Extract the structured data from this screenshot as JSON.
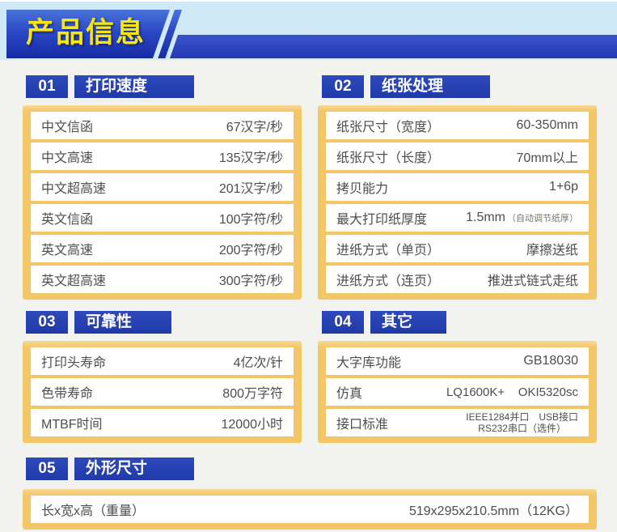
{
  "banner": {
    "title": "产品信息"
  },
  "sections": [
    {
      "number": "01",
      "title": "打印速度",
      "rows": [
        {
          "label": "中文信函",
          "value": "67汉字/秒"
        },
        {
          "label": "中文高速",
          "value": "135汉字/秒"
        },
        {
          "label": "中文超高速",
          "value": "201汉字/秒"
        },
        {
          "label": "英文信函",
          "value": "100字符/秒"
        },
        {
          "label": "英文高速",
          "value": "200字符/秒"
        },
        {
          "label": "英文超高速",
          "value": "300字符/秒"
        }
      ]
    },
    {
      "number": "02",
      "title": "纸张处理",
      "rows": [
        {
          "label": "纸张尺寸（宽度）",
          "value": "60-350mm"
        },
        {
          "label": "纸张尺寸（长度）",
          "value": "70mm以上"
        },
        {
          "label": "拷贝能力",
          "value": "1+6p"
        },
        {
          "label": "最大打印纸厚度",
          "value": "1.5mm",
          "note": "（自动调节纸厚）"
        },
        {
          "label": "进纸方式（单页）",
          "value": "摩擦送纸"
        },
        {
          "label": "进纸方式（连页）",
          "value": "推进式链式走纸"
        }
      ]
    },
    {
      "number": "03",
      "title": "可靠性",
      "rows": [
        {
          "label": "打印头寿命",
          "value": "4亿次/针"
        },
        {
          "label": "色带寿命",
          "value": "800万字符"
        },
        {
          "label": "MTBF时间",
          "value": "12000小时"
        }
      ]
    },
    {
      "number": "04",
      "title": "其它",
      "rows": [
        {
          "label": "大字库功能",
          "value": "GB18030"
        },
        {
          "label": "仿真",
          "value": "LQ1600K+    OKI5320sc",
          "small": true
        },
        {
          "label": "接口标准",
          "value_lines": [
            "IEEE1284并口　USB接口",
            "RS232串口（选件）"
          ]
        }
      ]
    },
    {
      "number": "05",
      "title": "外形尺寸",
      "rows": [
        {
          "label": "长x宽x高（重量）",
          "value": "519x295x210.5mm（12KG）"
        }
      ]
    }
  ],
  "colors": {
    "banner_blue_top": "#4a73da",
    "banner_blue_bottom": "#182aa6",
    "header_blue": "#2a47b8",
    "accent_yellow": "#f3c767",
    "title_yellow": "#f7e70c",
    "bg_cyan": "#cfe9f6",
    "bg_gray": "#f2f3ef",
    "row_text": "#4e4e50"
  }
}
